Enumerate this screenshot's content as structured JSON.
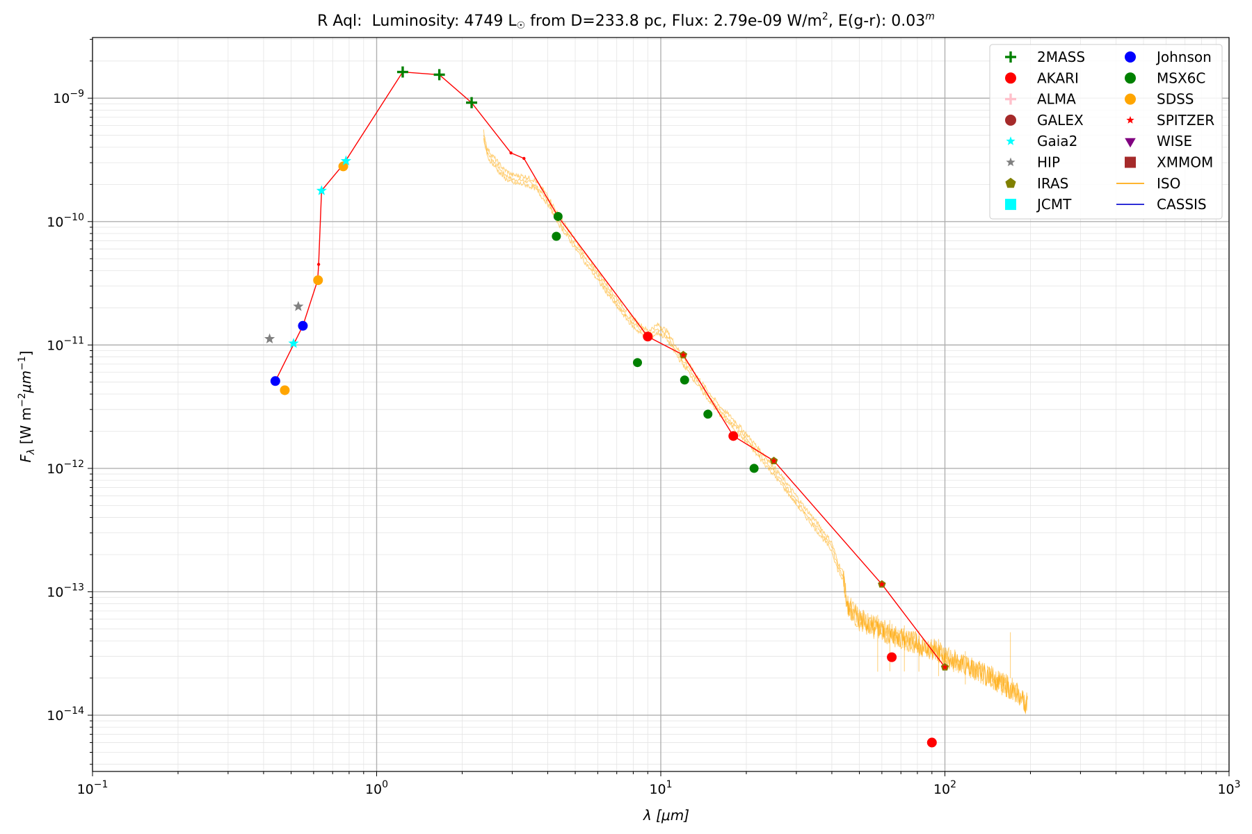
{
  "chart_data": {
    "type": "scatter",
    "title_parts": {
      "star": "R Aql:",
      "lum_prefix": "Luminosity: 4749 L",
      "sun_symbol": "☉",
      "dist": " from D=233.8 pc, Flux: 2.79e-09 W/m",
      "sq": "2",
      "ext": ", E(g-r): 0.03",
      "mag": "m"
    },
    "xlabel": "λ [μm]",
    "ylabel": "F_λ [W m^-2 μm^-1]",
    "xscale": "log",
    "yscale": "log",
    "xlim": [
      0.1,
      1000
    ],
    "ylim": [
      3.5e-15,
      3.1e-09
    ],
    "grid": true,
    "legend_position": "top-right",
    "x_ticks": [
      "10^-1",
      "10^0",
      "10^1",
      "10^2",
      "10^3"
    ],
    "y_ticks": [
      "10^-14",
      "10^-13",
      "10^-12",
      "10^-11",
      "10^-10",
      "10^-9"
    ],
    "legend": [
      {
        "label": "2MASS",
        "marker": "plus",
        "color": "#008000"
      },
      {
        "label": "AKARI",
        "marker": "circle",
        "color": "#ff0000"
      },
      {
        "label": "ALMA",
        "marker": "plus",
        "color": "#ffc0cb"
      },
      {
        "label": "GALEX",
        "marker": "circle",
        "color": "#a52a2a"
      },
      {
        "label": "Gaia2",
        "marker": "star",
        "color": "#00ffff"
      },
      {
        "label": "HIP",
        "marker": "star",
        "color": "#808080"
      },
      {
        "label": "IRAS",
        "marker": "pentagon",
        "color": "#808000"
      },
      {
        "label": "JCMT",
        "marker": "square",
        "color": "#00ffff"
      },
      {
        "label": "Johnson",
        "marker": "circle",
        "color": "#0000ff"
      },
      {
        "label": "MSX6C",
        "marker": "circle",
        "color": "#008000"
      },
      {
        "label": "SDSS",
        "marker": "circle",
        "color": "#ffa500"
      },
      {
        "label": "SPITZER",
        "marker": "star",
        "color": "#ff0000"
      },
      {
        "label": "WISE",
        "marker": "triangle-down",
        "color": "#800080"
      },
      {
        "label": "XMMOM",
        "marker": "square",
        "color": "#a52a2a"
      },
      {
        "label": "ISO",
        "marker": "line",
        "color": "#ffa500"
      },
      {
        "label": "CASSIS",
        "marker": "line",
        "color": "#0000cd"
      }
    ],
    "series": [
      {
        "name": "2MASS",
        "marker": "plus",
        "color": "#008000",
        "size": 8,
        "x": [
          1.235,
          1.662,
          2.159
        ],
        "y": [
          1.63e-09,
          1.55e-09,
          9.2e-10
        ]
      },
      {
        "name": "AKARI",
        "marker": "circle",
        "color": "#ff0000",
        "size": 7,
        "x": [
          9.0,
          18.0,
          65.0,
          90.0
        ],
        "y": [
          1.17e-11,
          1.83e-12,
          2.95e-14,
          6e-15
        ]
      },
      {
        "name": "Johnson",
        "marker": "circle",
        "color": "#0000ff",
        "size": 7,
        "x": [
          0.44,
          0.55
        ],
        "y": [
          5.1e-12,
          1.43e-11
        ]
      },
      {
        "name": "MSX6C",
        "marker": "circle",
        "color": "#008000",
        "size": 6.5,
        "x": [
          4.29,
          4.35,
          8.28,
          12.13,
          14.65,
          21.3
        ],
        "y": [
          7.6e-11,
          1.1e-10,
          7.2e-12,
          5.2e-12,
          2.75e-12,
          1e-12
        ]
      },
      {
        "name": "SDSS",
        "marker": "circle",
        "color": "#ffa500",
        "size": 7,
        "x": [
          0.475,
          0.622,
          0.763
        ],
        "y": [
          4.3e-12,
          3.35e-11,
          2.8e-10
        ]
      },
      {
        "name": "HIP",
        "marker": "star",
        "color": "#808080",
        "size": 8,
        "x": [
          0.42,
          0.53
        ],
        "y": [
          1.12e-11,
          2.05e-11
        ]
      },
      {
        "name": "Gaia2",
        "marker": "star",
        "color": "#00ffff",
        "size": 8,
        "x": [
          0.51,
          0.64,
          0.78
        ],
        "y": [
          1.03e-11,
          1.78e-10,
          3.1e-10
        ]
      },
      {
        "name": "IRAS",
        "marker": "pentagon",
        "color": "#808000",
        "size": 6,
        "x": [
          12.0,
          25.0,
          60.0,
          100.0
        ],
        "y": [
          8.3e-12,
          1.15e-12,
          1.15e-13,
          2.45e-14
        ]
      },
      {
        "name": "SPITZER",
        "marker": "star",
        "color": "#ff0000",
        "size": 5,
        "x": [
          12.0,
          25.0,
          60.0,
          100.0
        ],
        "y": [
          8.3e-12,
          1.15e-12,
          1.15e-13,
          2.45e-14
        ]
      }
    ],
    "sed_line": {
      "color": "#ff0000",
      "x": [
        0.44,
        0.55,
        0.62,
        0.625,
        0.64,
        0.763,
        1.235,
        1.662,
        2.159,
        2.97,
        3.3,
        4.35,
        9.0,
        12.0,
        18.0,
        25.0,
        60.0,
        100.0
      ],
      "y": [
        5.1e-12,
        1.43e-11,
        3.35e-11,
        4.5e-11,
        1.78e-10,
        2.9e-10,
        1.63e-09,
        1.55e-09,
        9.2e-10,
        3.6e-10,
        3.25e-10,
        1.1e-10,
        1.17e-11,
        8.3e-12,
        1.83e-12,
        1.15e-12,
        1.15e-13,
        2.45e-14
      ]
    },
    "iso_spectrum": {
      "color": "#ffa500",
      "x": [
        2.38,
        2.45,
        2.6,
        2.8,
        3.0,
        3.3,
        3.6,
        4.0,
        4.35,
        5.0,
        6.0,
        7.0,
        8.0,
        9.0,
        9.8,
        10.5,
        11.5,
        12.5,
        14.0,
        16.0,
        18.0,
        20.0,
        22.0,
        25.0,
        28.0,
        32.0,
        36.0,
        40.0,
        42.0,
        44.0,
        45.0,
        50.0,
        60.0,
        70.0,
        80.0,
        90.0,
        100.0,
        110.0,
        120.0,
        140.0,
        160.0,
        180.0,
        195.0
      ],
      "y": [
        5e-10,
        3.6e-10,
        3e-10,
        2.45e-10,
        2.2e-10,
        2.15e-10,
        2e-10,
        1.5e-10,
        1.05e-10,
        6.5e-11,
        3.6e-11,
        2.2e-11,
        1.5e-11,
        1.2e-11,
        1.35e-11,
        1.2e-11,
        8.5e-12,
        6.5e-12,
        4.5e-12,
        3e-12,
        2.3e-12,
        1.75e-12,
        1.35e-12,
        9.5e-13,
        6.8e-13,
        4.5e-13,
        3.2e-13,
        2.3e-13,
        1.6e-13,
        1.3e-13,
        8e-14,
        6e-14,
        4.8e-14,
        4.2e-14,
        3.8e-14,
        3.4e-14,
        3e-14,
        2.7e-14,
        2.5e-14,
        2.1e-14,
        1.8e-14,
        1.5e-14,
        1.2e-14
      ]
    }
  }
}
